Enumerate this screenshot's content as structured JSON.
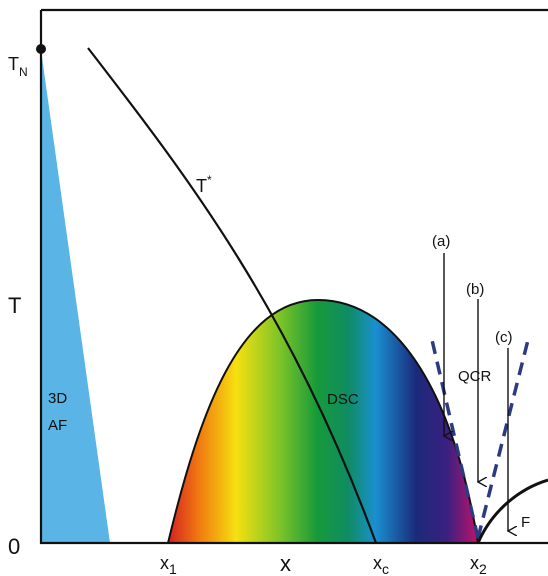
{
  "diagram": {
    "axis": {
      "y_label": "T",
      "origin_label": "0",
      "x_label": "x",
      "tn_label": "T",
      "tn_sub": "N"
    },
    "x_ticks": [
      {
        "main": "x",
        "sub": "1"
      },
      {
        "main": "x",
        "sub": "c"
      },
      {
        "main": "x",
        "sub": "2"
      }
    ],
    "regions": {
      "af_line1": "3D",
      "af_line2": "AF",
      "dsc": "DSC",
      "qcr": "QCR",
      "f": "F"
    },
    "tstar": {
      "main": "T",
      "sup": "*"
    },
    "arrows": {
      "a": "(a)",
      "b": "(b)",
      "c": "(c)"
    },
    "colors": {
      "af_fill": "#5ab4e5",
      "dome_gradient": [
        "#d62020",
        "#f07a10",
        "#f6e010",
        "#7ec428",
        "#179a3a",
        "#0f8c62",
        "#1a8fd0",
        "#1b2a7a",
        "#3a2080",
        "#c0126a"
      ],
      "qcr_dashes": "#2c3a82",
      "lines": "#111111"
    }
  }
}
